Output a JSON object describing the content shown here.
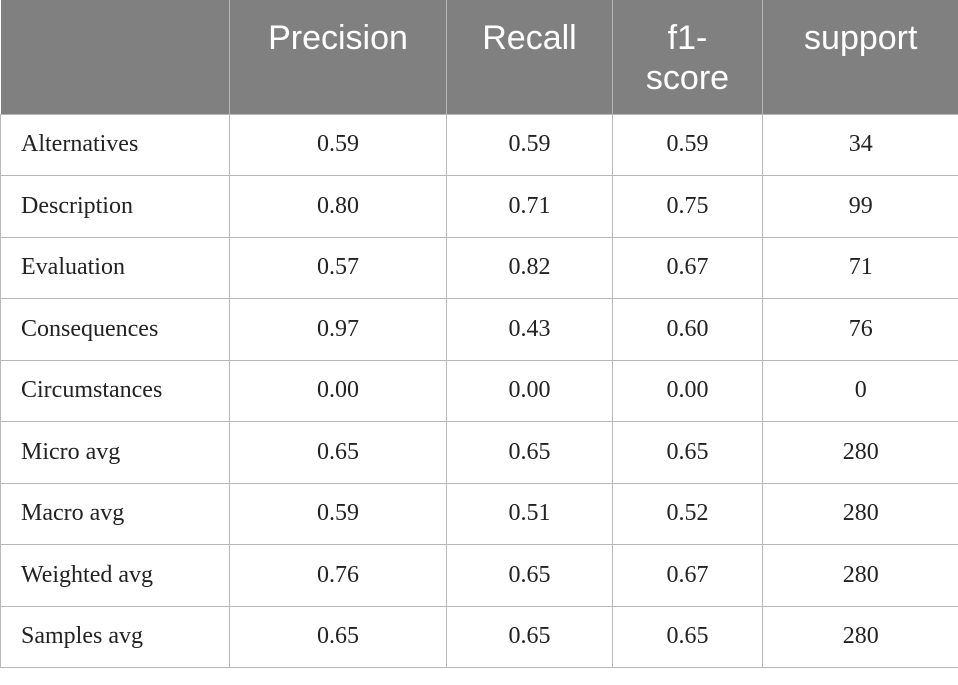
{
  "table": {
    "header": [
      "",
      "Precision",
      "Recall",
      "f1-score",
      "support"
    ],
    "rows": [
      [
        "Alternatives",
        "0.59",
        "0.59",
        "0.59",
        "34"
      ],
      [
        "Description",
        "0.80",
        "0.71",
        "0.75",
        "99"
      ],
      [
        "Evaluation",
        "0.57",
        "0.82",
        "0.67",
        "71"
      ],
      [
        "Consequences",
        "0.97",
        "0.43",
        "0.60",
        "76"
      ],
      [
        "Circumstances",
        "0.00",
        "0.00",
        "0.00",
        "0"
      ],
      [
        "Micro avg",
        "0.65",
        "0.65",
        "0.65",
        "280"
      ],
      [
        "Macro avg",
        "0.59",
        "0.51",
        "0.52",
        "280"
      ],
      [
        "Weighted avg",
        "0.76",
        "0.65",
        "0.67",
        "280"
      ],
      [
        "Samples avg",
        "0.65",
        "0.65",
        "0.65",
        "280"
      ]
    ]
  }
}
